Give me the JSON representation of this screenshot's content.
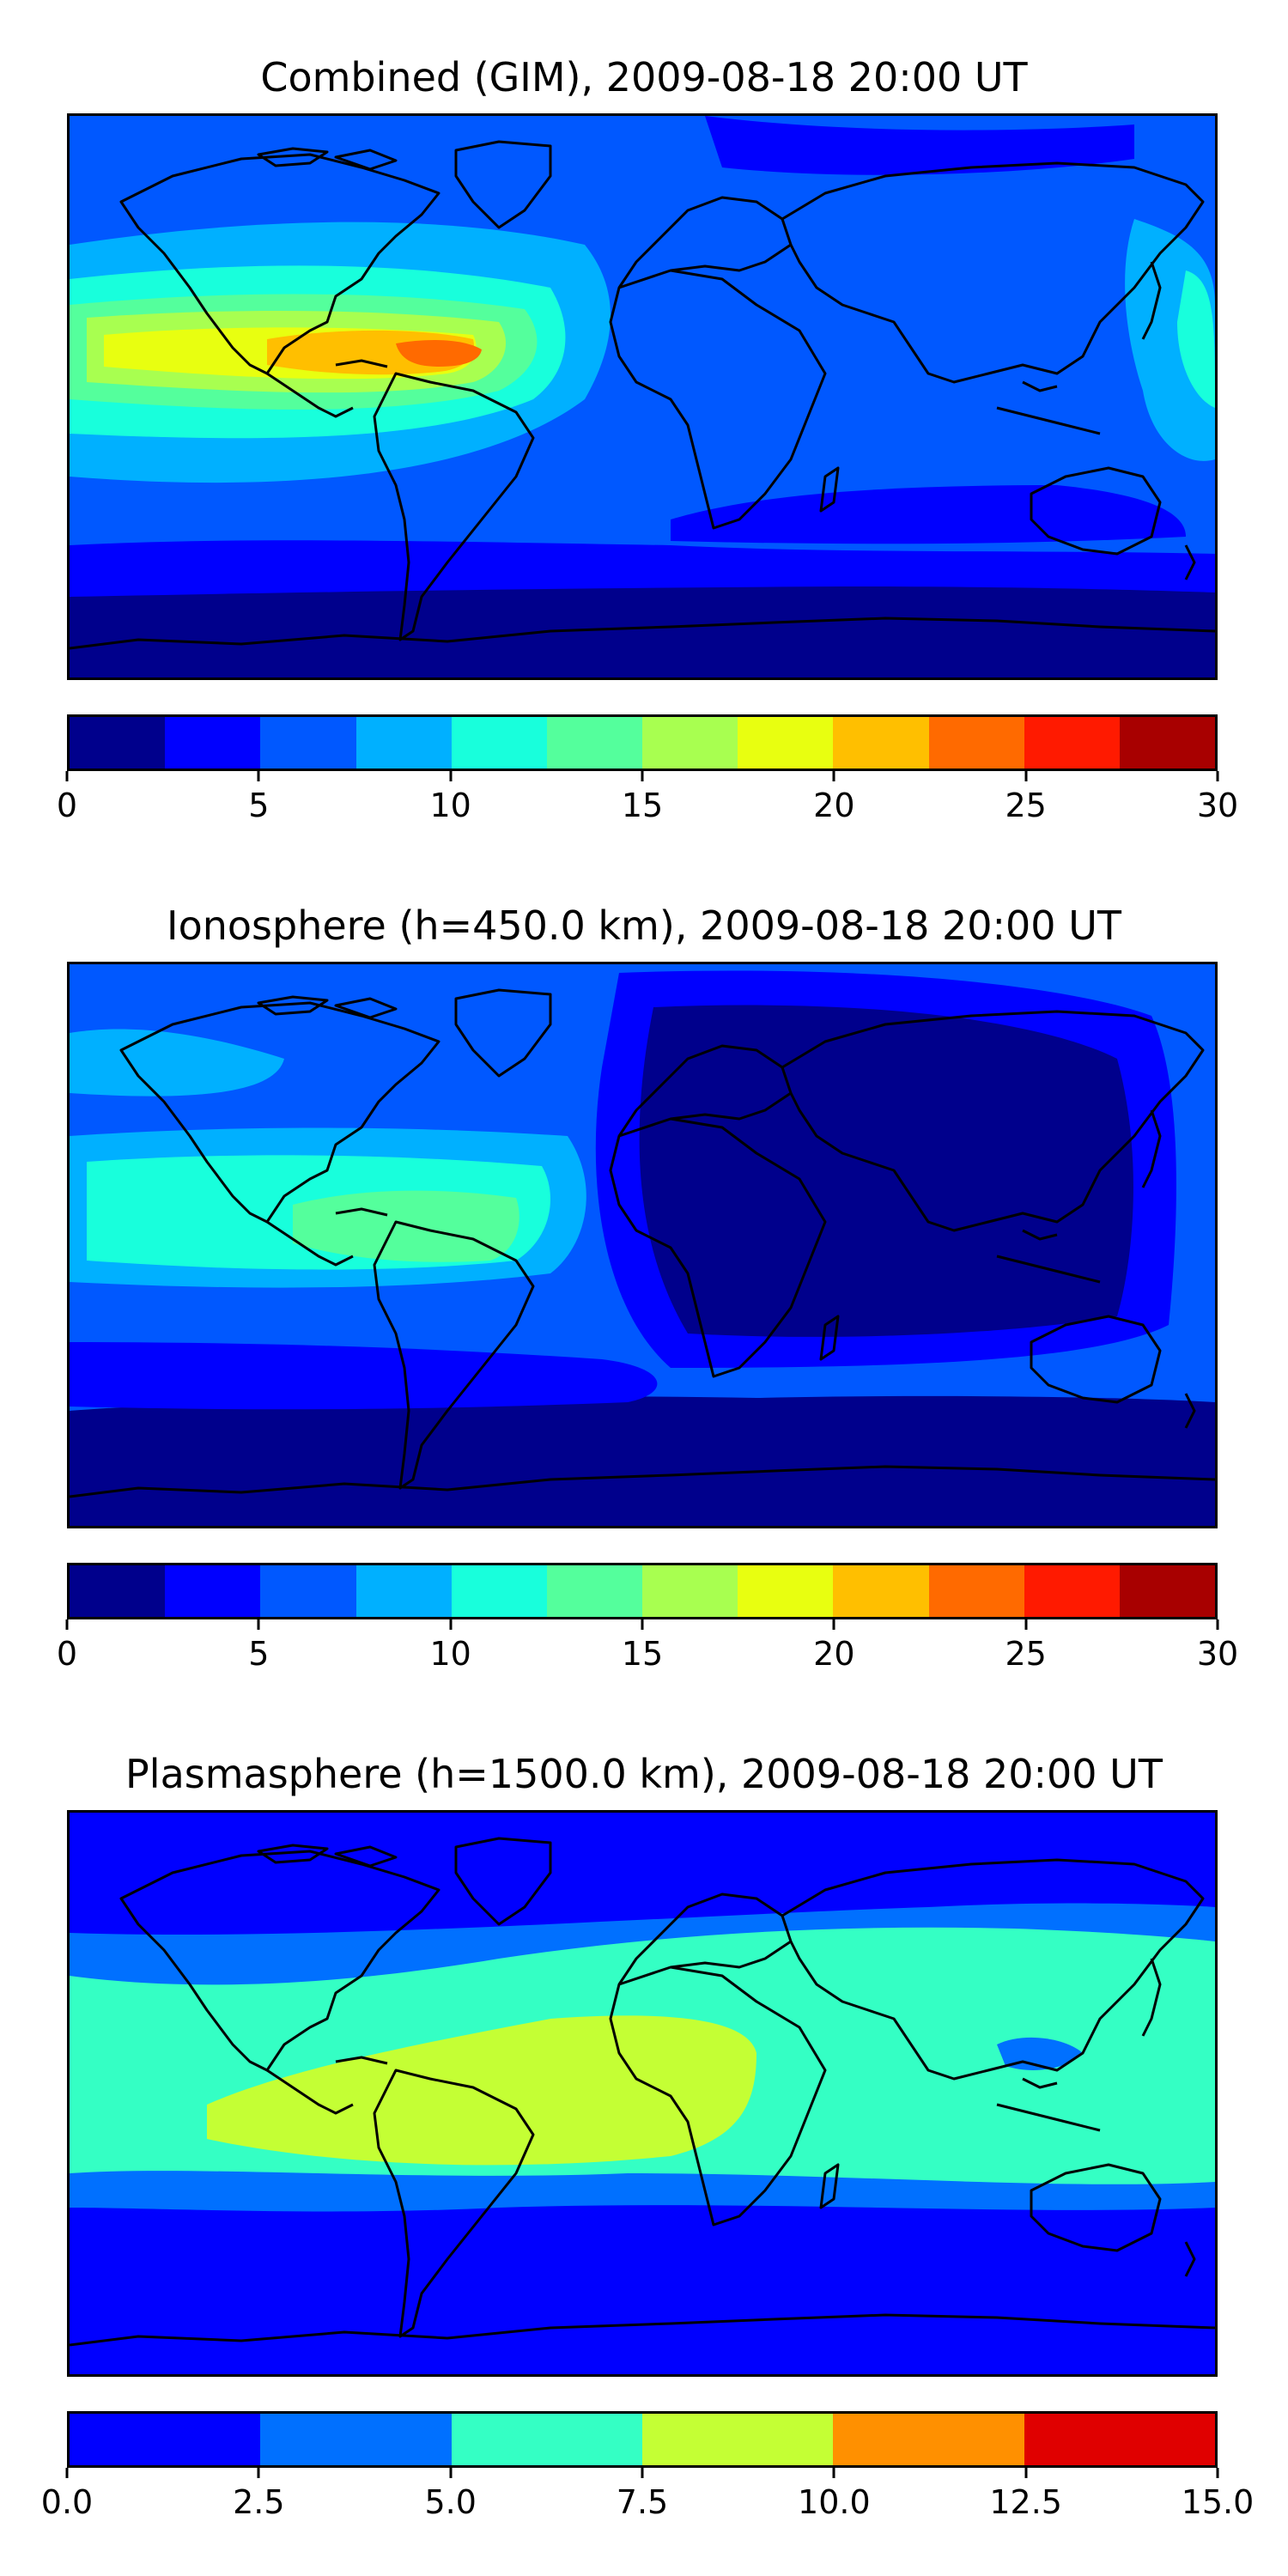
{
  "panels": [
    {
      "title": "Combined (GIM), 2009-08-18 20:00 UT",
      "palette": [
        "#00008c",
        "#0000ff",
        "#0058ff",
        "#00b0ff",
        "#18ffdc",
        "#54ff9c",
        "#a8ff50",
        "#e8ff10",
        "#ffbf00",
        "#ff6a00",
        "#ff1a00",
        "#a80000"
      ],
      "tick_labels": [
        "0",
        "5",
        "10",
        "15",
        "20",
        "25",
        "30"
      ]
    },
    {
      "title": "Ionosphere  (h=450.0 km), 2009-08-18 20:00 UT",
      "palette": [
        "#00008c",
        "#0000ff",
        "#0058ff",
        "#00b0ff",
        "#18ffdc",
        "#54ff9c",
        "#a8ff50",
        "#e8ff10",
        "#ffbf00",
        "#ff6a00",
        "#ff1a00",
        "#a80000"
      ],
      "tick_labels": [
        "0",
        "5",
        "10",
        "15",
        "20",
        "25",
        "30"
      ]
    },
    {
      "title": "Plasmasphere (h=1500.0 km), 2009-08-18 20:00 UT",
      "palette": [
        "#0000ff",
        "#0070ff",
        "#34ffc4",
        "#c4ff34",
        "#ff9000",
        "#e00000"
      ],
      "tick_labels": [
        "0.0",
        "2.5",
        "5.0",
        "7.5",
        "10.0",
        "12.5",
        "15.0"
      ]
    }
  ]
}
